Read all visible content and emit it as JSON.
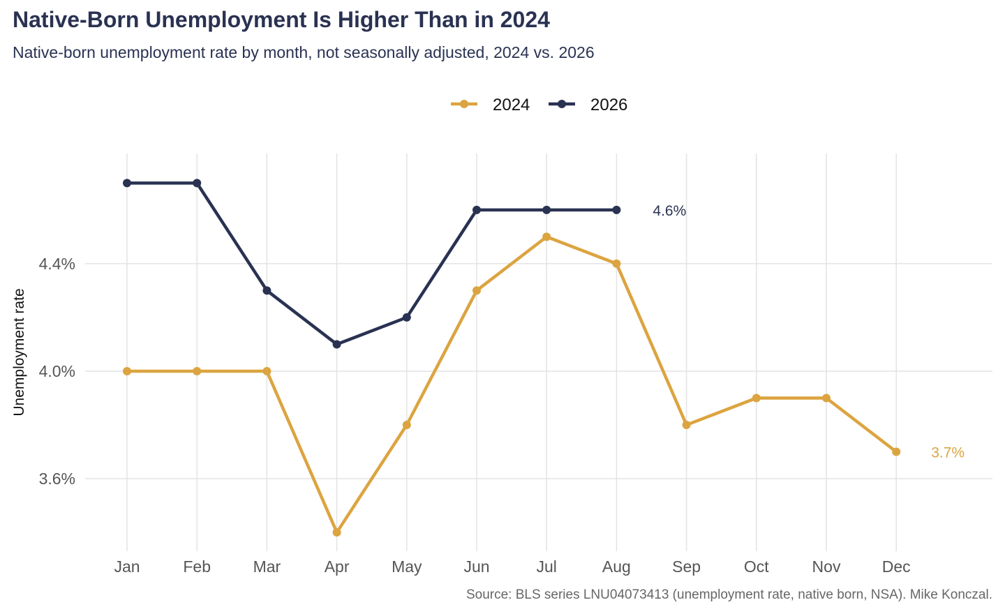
{
  "title": "Native-Born Unemployment Is Higher Than in 2024",
  "subtitle": "Native-born unemployment rate by month, not seasonally adjusted, 2024 vs. 2026",
  "caption": "Source: BLS series LNU04073413 (unemployment rate, native born, NSA). Mike Konczal.",
  "colors": {
    "s2024": "#dca440",
    "s2026": "#2a3252",
    "grid": "#e3e3e3"
  },
  "chart_data": {
    "type": "line",
    "ylabel": "Unemployment rate",
    "categories": [
      "Jan",
      "Feb",
      "Mar",
      "Apr",
      "May",
      "Jun",
      "Jul",
      "Aug",
      "Sep",
      "Oct",
      "Nov",
      "Dec"
    ],
    "yticks": [
      3.6,
      4.0,
      4.4
    ],
    "ytick_labels": [
      "3.6%",
      "4.0%",
      "4.4%"
    ],
    "ylim": [
      3.33,
      4.81
    ],
    "grid": true,
    "legend_position": "top",
    "series": [
      {
        "name": "2024",
        "color": "#dca440",
        "values": [
          4.0,
          4.0,
          4.0,
          3.4,
          3.8,
          4.3,
          4.5,
          4.4,
          3.8,
          3.9,
          3.9,
          3.7
        ],
        "end_label": "3.7%"
      },
      {
        "name": "2026",
        "color": "#2a3252",
        "values": [
          4.7,
          4.7,
          4.3,
          4.1,
          4.2,
          4.6,
          4.6,
          4.6,
          null,
          null,
          null,
          null
        ],
        "end_label": "4.6%"
      }
    ]
  }
}
